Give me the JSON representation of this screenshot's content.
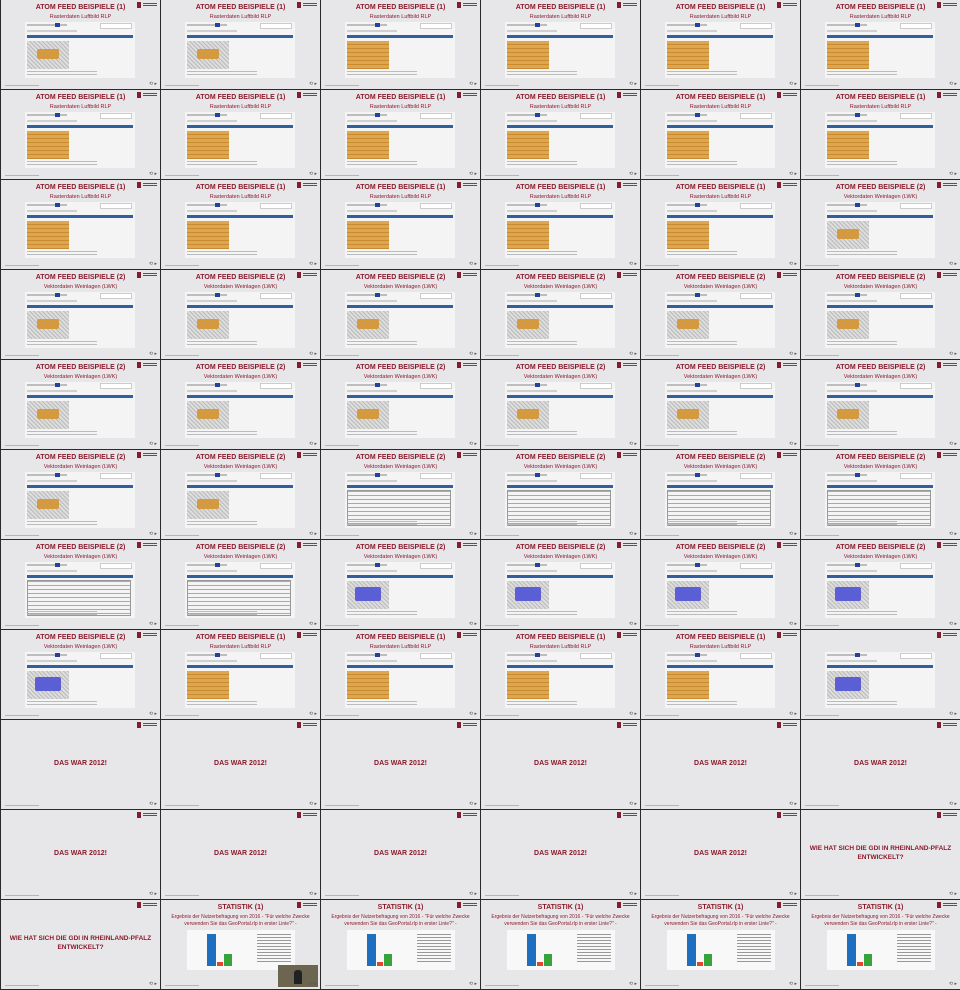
{
  "texts": {
    "atom1": "ATOM FEED BEISPIELE (1)",
    "atom1_sub": "Rasterdaten Luftbild RLP",
    "atom2": "ATOM FEED BEISPIELE (2)",
    "atom2_sub": "Vektordaten Weinlagen (LWK)",
    "das": "DAS WAR 2012!",
    "wie": "WIE HAT SICH DIE GDI IN RHEINLAND-PFALZ ENTWICKELT?",
    "stat": "STATISTIK (1)",
    "stat_sub": "Ergebnis der Nutzerbefragung von 2016 - \"Für welche Zwecke verwenden Sie das GeoPortal.rlp in erster Linie?\" -",
    "nav": "⟲ ▸"
  },
  "colors": {
    "title": "#8b1a2b",
    "map_orange": "#d9952a",
    "map_blue": "#5a5fd6",
    "bar": "#2f5f9e"
  },
  "slides": [
    {
      "t": "atom1",
      "sub": "atom1_sub",
      "kind": "map",
      "map": "gray"
    },
    {
      "t": "atom1",
      "sub": "atom1_sub",
      "kind": "map",
      "map": "gray"
    },
    {
      "t": "atom1",
      "sub": "atom1_sub",
      "kind": "map",
      "map": "orange"
    },
    {
      "t": "atom1",
      "sub": "atom1_sub",
      "kind": "map",
      "map": "orange"
    },
    {
      "t": "atom1",
      "sub": "atom1_sub",
      "kind": "map",
      "map": "orange"
    },
    {
      "t": "atom1",
      "sub": "atom1_sub",
      "kind": "map",
      "map": "orange"
    },
    {
      "t": "atom1",
      "sub": "atom1_sub",
      "kind": "map",
      "map": "orange"
    },
    {
      "t": "atom1",
      "sub": "atom1_sub",
      "kind": "map",
      "map": "orange"
    },
    {
      "t": "atom1",
      "sub": "atom1_sub",
      "kind": "map",
      "map": "orange"
    },
    {
      "t": "atom1",
      "sub": "atom1_sub",
      "kind": "map",
      "map": "orange"
    },
    {
      "t": "atom1",
      "sub": "atom1_sub",
      "kind": "map",
      "map": "orange"
    },
    {
      "t": "atom1",
      "sub": "atom1_sub",
      "kind": "map",
      "map": "orange"
    },
    {
      "t": "atom1",
      "sub": "atom1_sub",
      "kind": "map",
      "map": "orange"
    },
    {
      "t": "atom1",
      "sub": "atom1_sub",
      "kind": "map",
      "map": "orange"
    },
    {
      "t": "atom1",
      "sub": "atom1_sub",
      "kind": "map",
      "map": "orange"
    },
    {
      "t": "atom1",
      "sub": "atom1_sub",
      "kind": "map",
      "map": "orange"
    },
    {
      "t": "atom1",
      "sub": "atom1_sub",
      "kind": "map",
      "map": "orange"
    },
    {
      "t": "atom2",
      "sub": "atom2_sub",
      "kind": "map",
      "map": "gray"
    },
    {
      "t": "atom2",
      "sub": "atom2_sub",
      "kind": "map",
      "map": "gray"
    },
    {
      "t": "atom2",
      "sub": "atom2_sub",
      "kind": "map",
      "map": "gray"
    },
    {
      "t": "atom2",
      "sub": "atom2_sub",
      "kind": "map",
      "map": "gray"
    },
    {
      "t": "atom2",
      "sub": "atom2_sub",
      "kind": "map",
      "map": "gray"
    },
    {
      "t": "atom2",
      "sub": "atom2_sub",
      "kind": "map",
      "map": "gray"
    },
    {
      "t": "atom2",
      "sub": "atom2_sub",
      "kind": "map",
      "map": "gray"
    },
    {
      "t": "atom2",
      "sub": "atom2_sub",
      "kind": "map",
      "map": "gray"
    },
    {
      "t": "atom2",
      "sub": "atom2_sub",
      "kind": "map",
      "map": "gray"
    },
    {
      "t": "atom2",
      "sub": "atom2_sub",
      "kind": "map",
      "map": "gray"
    },
    {
      "t": "atom2",
      "sub": "atom2_sub",
      "kind": "map",
      "map": "gray"
    },
    {
      "t": "atom2",
      "sub": "atom2_sub",
      "kind": "map",
      "map": "gray"
    },
    {
      "t": "atom2",
      "sub": "atom2_sub",
      "kind": "map",
      "map": "gray"
    },
    {
      "t": "atom2",
      "sub": "atom2_sub",
      "kind": "map",
      "map": "gray"
    },
    {
      "t": "atom2",
      "sub": "atom2_sub",
      "kind": "map",
      "map": "gray"
    },
    {
      "t": "atom2",
      "sub": "atom2_sub",
      "kind": "list"
    },
    {
      "t": "atom2",
      "sub": "atom2_sub",
      "kind": "list"
    },
    {
      "t": "atom2",
      "sub": "atom2_sub",
      "kind": "list"
    },
    {
      "t": "atom2",
      "sub": "atom2_sub",
      "kind": "list"
    },
    {
      "t": "atom2",
      "sub": "atom2_sub",
      "kind": "list"
    },
    {
      "t": "atom2",
      "sub": "atom2_sub",
      "kind": "list"
    },
    {
      "t": "atom2",
      "sub": "atom2_sub",
      "kind": "map",
      "map": "blue"
    },
    {
      "t": "atom2",
      "sub": "atom2_sub",
      "kind": "map",
      "map": "blue"
    },
    {
      "t": "atom2",
      "sub": "atom2_sub",
      "kind": "map",
      "map": "blue"
    },
    {
      "t": "atom2",
      "sub": "atom2_sub",
      "kind": "map",
      "map": "blue"
    },
    {
      "t": "atom2",
      "sub": "atom2_sub",
      "kind": "map",
      "map": "blue"
    },
    {
      "t": "atom1",
      "sub": "atom1_sub",
      "kind": "map",
      "map": "orange"
    },
    {
      "t": "atom1",
      "sub": "atom1_sub",
      "kind": "map",
      "map": "orange"
    },
    {
      "t": "atom1",
      "sub": "atom1_sub",
      "kind": "map",
      "map": "orange"
    },
    {
      "t": "atom1",
      "sub": "atom1_sub",
      "kind": "map",
      "map": "orange"
    },
    {
      "t": "",
      "sub": "",
      "kind": "map",
      "map": "blue"
    },
    {
      "t": "das",
      "kind": "big"
    },
    {
      "t": "das",
      "kind": "big"
    },
    {
      "t": "das",
      "kind": "big"
    },
    {
      "t": "das",
      "kind": "big"
    },
    {
      "t": "das",
      "kind": "big"
    },
    {
      "t": "das",
      "kind": "big"
    },
    {
      "t": "das",
      "kind": "big"
    },
    {
      "t": "das",
      "kind": "big"
    },
    {
      "t": "das",
      "kind": "big"
    },
    {
      "t": "das",
      "kind": "big"
    },
    {
      "t": "das",
      "kind": "big"
    },
    {
      "t": "wie",
      "kind": "wrap"
    },
    {
      "t": "wie",
      "kind": "wrap"
    },
    {
      "t": "stat",
      "sub": "stat_sub",
      "kind": "chart",
      "video": true
    },
    {
      "t": "stat",
      "sub": "stat_sub",
      "kind": "chart"
    },
    {
      "t": "stat",
      "sub": "stat_sub",
      "kind": "chart"
    },
    {
      "t": "stat",
      "sub": "stat_sub",
      "kind": "chart"
    },
    {
      "t": "stat",
      "sub": "stat_sub",
      "kind": "chart"
    }
  ]
}
